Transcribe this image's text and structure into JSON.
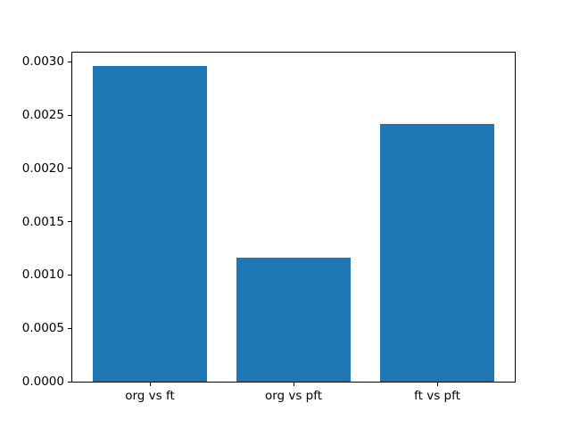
{
  "figure": {
    "background": "#ffffff"
  },
  "chart_data": {
    "type": "bar",
    "categories": [
      "org vs ft",
      "org vs pft",
      "ft vs pft"
    ],
    "values": [
      0.00296,
      0.00116,
      0.00242
    ],
    "bar_color": "#1f77b4",
    "ylim": [
      0,
      0.003085
    ],
    "yticks": [
      0.0,
      0.0005,
      0.001,
      0.0015,
      0.002,
      0.0025,
      0.003
    ],
    "ytick_labels": [
      "0.0000",
      "0.0005",
      "0.0010",
      "0.0015",
      "0.0020",
      "0.0025",
      "0.0030"
    ],
    "grid": false,
    "legend": null,
    "bar_width_fraction": 0.8,
    "xlim_units": [
      -0.54,
      2.54
    ]
  }
}
